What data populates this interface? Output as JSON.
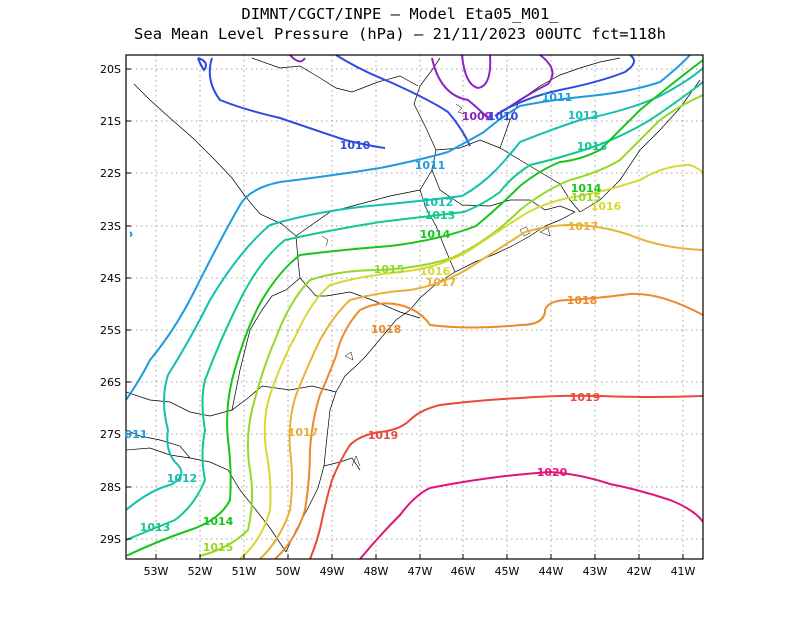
{
  "title_line1": "DIMNT/CGCT/INPE –  Model Eta05_M01_",
  "title_line2": "Sea Mean Level Pressure (hPa) – 21/11/2023 00UTC fct=118h",
  "lat_labels": [
    "20S",
    "21S",
    "22S",
    "23S",
    "24S",
    "25S",
    "26S",
    "27S",
    "28S",
    "29S"
  ],
  "lon_labels": [
    "53W",
    "52W",
    "51W",
    "50W",
    "49W",
    "48W",
    "47W",
    "46W",
    "45W",
    "44W",
    "43W",
    "42W",
    "41W"
  ],
  "contour_labels": [
    {
      "id": "c1010",
      "text": "1010",
      "color": "#2e4ae0"
    },
    {
      "id": "c1009",
      "text": "1009",
      "color": "#8a22c8"
    },
    {
      "id": "c1010b",
      "text": "1010",
      "color": "#2e4ae0"
    },
    {
      "id": "c1011a",
      "text": "1011",
      "color": "#1e9be0"
    },
    {
      "id": "c1011b",
      "text": "1011",
      "color": "#1e9be0"
    },
    {
      "id": "c1011c",
      "text": "011",
      "color": "#1e9be0"
    },
    {
      "id": "c1012a",
      "text": "1012",
      "color": "#13bfb0"
    },
    {
      "id": "c1012b",
      "text": "1012",
      "color": "#13bfb0"
    },
    {
      "id": "c1012c",
      "text": "1012",
      "color": "#13bfb0"
    },
    {
      "id": "c1013a",
      "text": "1013",
      "color": "#12c890"
    },
    {
      "id": "c1013b",
      "text": "1013",
      "color": "#12c890"
    },
    {
      "id": "c1013c",
      "text": "1013",
      "color": "#12c890"
    },
    {
      "id": "c1014a",
      "text": "1014",
      "color": "#17c41a"
    },
    {
      "id": "c1014b",
      "text": "1014",
      "color": "#17c41a"
    },
    {
      "id": "c1014c",
      "text": "1014",
      "color": "#17c41a"
    },
    {
      "id": "c1015a",
      "text": "1015",
      "color": "#95d82a"
    },
    {
      "id": "c1015b",
      "text": "1015",
      "color": "#95d82a"
    },
    {
      "id": "c1015c",
      "text": "1015",
      "color": "#95d82a"
    },
    {
      "id": "c1016a",
      "text": "1016",
      "color": "#d8d832"
    },
    {
      "id": "c1016b",
      "text": "1016",
      "color": "#d8d832"
    },
    {
      "id": "c1017a",
      "text": "1017",
      "color": "#e8b034"
    },
    {
      "id": "c1017b",
      "text": "1017",
      "color": "#e8b034"
    },
    {
      "id": "c1017c",
      "text": "1017",
      "color": "#e8b034"
    },
    {
      "id": "c1018a",
      "text": "1018",
      "color": "#ea8a2a"
    },
    {
      "id": "c1018b",
      "text": "1018",
      "color": "#ea8a2a"
    },
    {
      "id": "c1019a",
      "text": "1019",
      "color": "#e84a3c"
    },
    {
      "id": "c1019b",
      "text": "1019",
      "color": "#e84a3c"
    },
    {
      "id": "c1020",
      "text": "1020",
      "color": "#e0147a"
    }
  ]
}
